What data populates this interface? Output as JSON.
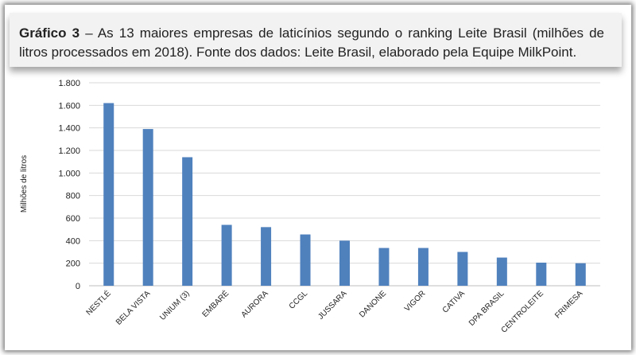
{
  "caption": {
    "label": "Gráfico 3",
    "text": " – As 13 maiores empresas de laticínios segundo o ranking Leite Brasil (milhões de litros processados em 2018). Fonte dos dados: Leite Brasil, elaborado pela Equipe MilkPoint."
  },
  "colors": {
    "bar": "#4f81bd",
    "grid": "#d9d9d9",
    "axis": "#bfbfbf"
  },
  "chart_data": {
    "type": "bar",
    "ylabel": "Milhões de litros",
    "ylim": [
      0,
      1800
    ],
    "yticks": [
      0,
      200,
      400,
      600,
      800,
      1000,
      1200,
      1400,
      1600,
      1800
    ],
    "ytick_labels": [
      "0",
      "200",
      "400",
      "600",
      "800",
      "1.000",
      "1.200",
      "1.400",
      "1.600",
      "1.800"
    ],
    "grid": true,
    "categories": [
      "NESTLÉ",
      "BELA VISTA",
      "UNIUM (3)",
      "EMBARÉ",
      "AURORA",
      "CCGL",
      "JUSSARA",
      "DANONE",
      "VIGOR",
      "CATIVA",
      "DPA BRASIL",
      "CENTROLEITE",
      "FRIMESA"
    ],
    "values": [
      1620,
      1390,
      1140,
      540,
      520,
      455,
      400,
      335,
      335,
      300,
      250,
      205,
      200
    ]
  }
}
